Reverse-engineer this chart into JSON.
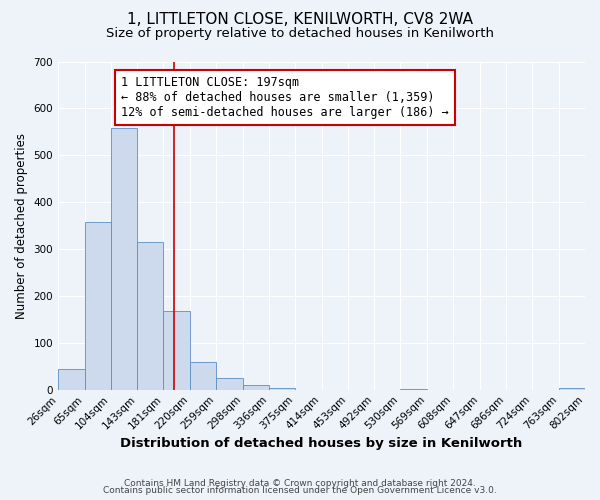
{
  "title": "1, LITTLETON CLOSE, KENILWORTH, CV8 2WA",
  "subtitle": "Size of property relative to detached houses in Kenilworth",
  "xlabel": "Distribution of detached houses by size in Kenilworth",
  "ylabel": "Number of detached properties",
  "footer_line1": "Contains HM Land Registry data © Crown copyright and database right 2024.",
  "footer_line2": "Contains public sector information licensed under the Open Government Licence v3.0.",
  "bin_edges": [
    26,
    65,
    104,
    143,
    181,
    220,
    259,
    298,
    336,
    375,
    414,
    453,
    492,
    530,
    569,
    608,
    647,
    686,
    724,
    763,
    802
  ],
  "bin_labels": [
    "26sqm",
    "65sqm",
    "104sqm",
    "143sqm",
    "181sqm",
    "220sqm",
    "259sqm",
    "298sqm",
    "336sqm",
    "375sqm",
    "414sqm",
    "453sqm",
    "492sqm",
    "530sqm",
    "569sqm",
    "608sqm",
    "647sqm",
    "686sqm",
    "724sqm",
    "763sqm",
    "802sqm"
  ],
  "counts": [
    44,
    358,
    558,
    315,
    168,
    60,
    25,
    10,
    3,
    0,
    0,
    0,
    0,
    2,
    0,
    0,
    0,
    0,
    0,
    3
  ],
  "bar_facecolor": "#cdd9ec",
  "bar_edgecolor": "#5b8ec4",
  "property_line_x": 197,
  "property_line_color": "#cc0000",
  "annotation_text": "1 LITTLETON CLOSE: 197sqm\n← 88% of detached houses are smaller (1,359)\n12% of semi-detached houses are larger (186) →",
  "annotation_box_edgecolor": "#cc0000",
  "annotation_box_facecolor": "#ffffff",
  "ylim": [
    0,
    700
  ],
  "yticks": [
    0,
    100,
    200,
    300,
    400,
    500,
    600,
    700
  ],
  "background_color": "#eef2f9",
  "grid_color": "#ffffff",
  "title_fontsize": 11,
  "subtitle_fontsize": 9.5,
  "xlabel_fontsize": 9.5,
  "ylabel_fontsize": 8.5,
  "tick_label_fontsize": 7.5,
  "annotation_fontsize": 8.5,
  "footer_fontsize": 6.5
}
